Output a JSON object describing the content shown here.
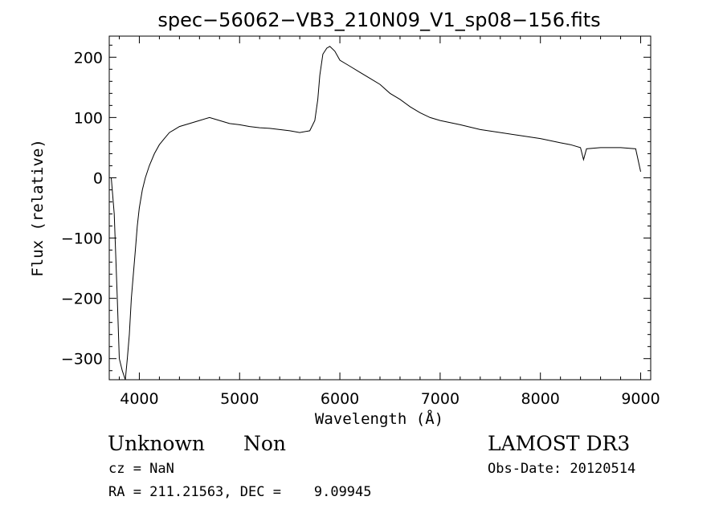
{
  "chart_data": {
    "type": "line",
    "title": "spec−56062−VB3_210N09_V1_sp08−156.fits",
    "xlabel": "Wavelength (Å)",
    "ylabel": "Flux (relative)",
    "xlim": [
      3700,
      9100
    ],
    "ylim": [
      -335,
      235
    ],
    "xticks": [
      4000,
      5000,
      6000,
      7000,
      8000,
      9000
    ],
    "xtick_labels": [
      "4000",
      "5000",
      "6000",
      "7000",
      "8000",
      "9000"
    ],
    "yticks": [
      -300,
      -200,
      -100,
      0,
      100,
      200
    ],
    "ytick_labels": [
      "−300",
      "−200",
      "−100",
      "0",
      "100",
      "200"
    ],
    "grid": false,
    "series": [
      {
        "color": "#000000",
        "points": [
          [
            3720,
            0
          ],
          [
            3750,
            -60
          ],
          [
            3780,
            -200
          ],
          [
            3800,
            -300
          ],
          [
            3830,
            -320
          ],
          [
            3860,
            -340
          ],
          [
            3880,
            -300
          ],
          [
            3900,
            -260
          ],
          [
            3920,
            -200
          ],
          [
            3940,
            -160
          ],
          [
            3960,
            -120
          ],
          [
            3980,
            -80
          ],
          [
            4000,
            -50
          ],
          [
            4030,
            -20
          ],
          [
            4060,
            0
          ],
          [
            4100,
            20
          ],
          [
            4150,
            40
          ],
          [
            4200,
            55
          ],
          [
            4250,
            65
          ],
          [
            4300,
            75
          ],
          [
            4350,
            80
          ],
          [
            4400,
            85
          ],
          [
            4500,
            90
          ],
          [
            4600,
            95
          ],
          [
            4700,
            100
          ],
          [
            4800,
            95
          ],
          [
            4900,
            90
          ],
          [
            5000,
            88
          ],
          [
            5100,
            85
          ],
          [
            5200,
            83
          ],
          [
            5300,
            82
          ],
          [
            5400,
            80
          ],
          [
            5500,
            78
          ],
          [
            5600,
            75
          ],
          [
            5700,
            78
          ],
          [
            5750,
            95
          ],
          [
            5780,
            130
          ],
          [
            5800,
            170
          ],
          [
            5830,
            205
          ],
          [
            5870,
            215
          ],
          [
            5900,
            218
          ],
          [
            5950,
            210
          ],
          [
            6000,
            195
          ],
          [
            6100,
            185
          ],
          [
            6200,
            175
          ],
          [
            6300,
            165
          ],
          [
            6400,
            155
          ],
          [
            6500,
            140
          ],
          [
            6600,
            130
          ],
          [
            6700,
            118
          ],
          [
            6800,
            108
          ],
          [
            6900,
            100
          ],
          [
            7000,
            95
          ],
          [
            7200,
            88
          ],
          [
            7400,
            80
          ],
          [
            7600,
            75
          ],
          [
            7800,
            70
          ],
          [
            8000,
            65
          ],
          [
            8200,
            58
          ],
          [
            8300,
            55
          ],
          [
            8400,
            50
          ],
          [
            8430,
            30
          ],
          [
            8460,
            48
          ],
          [
            8600,
            50
          ],
          [
            8800,
            50
          ],
          [
            8950,
            48
          ],
          [
            9000,
            10
          ]
        ]
      }
    ]
  },
  "info": {
    "object_class": "Unknown",
    "subclass": "Non",
    "survey": "LAMOST DR3",
    "cz": "cz = NaN",
    "obs_date": "Obs-Date: 20120514",
    "coords": "RA = 211.21563, DEC =    9.09945"
  }
}
